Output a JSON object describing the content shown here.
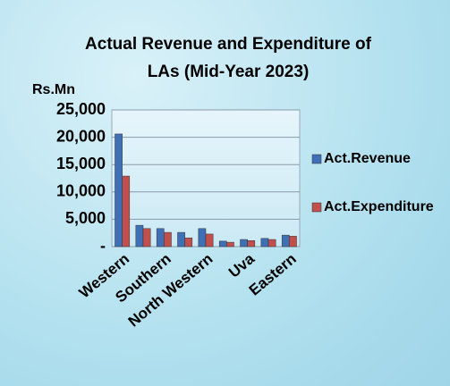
{
  "chart_data": {
    "type": "bar",
    "title": "Actual Revenue and Expenditure of LAs (Mid-Year 2023)",
    "y_axis_label": "Rs.Mn",
    "categories": [
      "Western",
      null,
      "Southern",
      null,
      "North Western",
      null,
      "Uva",
      null,
      "Eastern"
    ],
    "series": [
      {
        "name": "Act.Revenue",
        "color": "#3f6fb5",
        "values": [
          20600,
          3900,
          3300,
          2600,
          3300,
          1000,
          1300,
          1500,
          2100
        ]
      },
      {
        "name": "Act.Expenditure",
        "color": "#c0504d",
        "values": [
          12900,
          3300,
          2600,
          1600,
          2300,
          800,
          1100,
          1300,
          1900
        ]
      }
    ],
    "ylim": [
      0,
      25000
    ],
    "yticks": [
      {
        "value": 0,
        "label": "-"
      },
      {
        "value": 5000,
        "label": "5,000"
      },
      {
        "value": 10000,
        "label": "10,000"
      },
      {
        "value": 15000,
        "label": "15,000"
      },
      {
        "value": 20000,
        "label": "20,000"
      },
      {
        "value": 25000,
        "label": "25,000"
      }
    ],
    "grid": true,
    "legend": "right"
  }
}
